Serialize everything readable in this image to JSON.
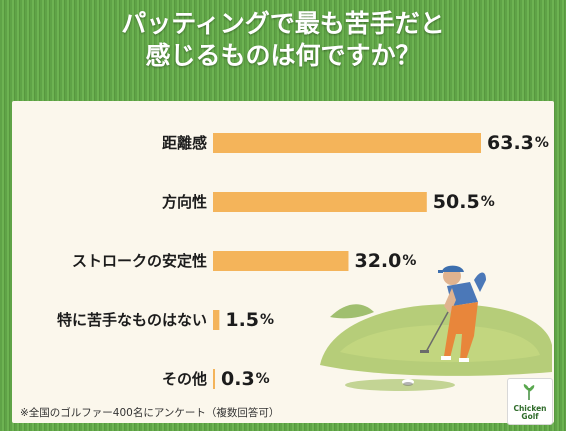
{
  "title": {
    "line1": "パッティングで最も苦手だと",
    "line2": "感じるものは何ですか？"
  },
  "footnote": "※全国のゴルファー400名にアンケート（複数回答可）",
  "logo": {
    "line1": "Chicken",
    "line2": "Golf"
  },
  "colors": {
    "bar": "#f4b45a",
    "background": "#fbf7ec",
    "grass": "#5fa347"
  },
  "icons": {
    "illustration": "golfer-putting-illustration",
    "logo": "chicken-golf-logo"
  },
  "chart_data": {
    "type": "bar",
    "orientation": "horizontal",
    "categories": [
      "距離感",
      "方向性",
      "ストロークの安定性",
      "特に苦手なものはない",
      "その他"
    ],
    "values": [
      63.3,
      50.5,
      32.0,
      1.5,
      0.3
    ],
    "value_labels": [
      "63.3",
      "50.5",
      "32.0",
      "1.5",
      "0.3"
    ],
    "unit": "%",
    "xlim": [
      0,
      63.3
    ],
    "grid": false,
    "legend": "none"
  }
}
